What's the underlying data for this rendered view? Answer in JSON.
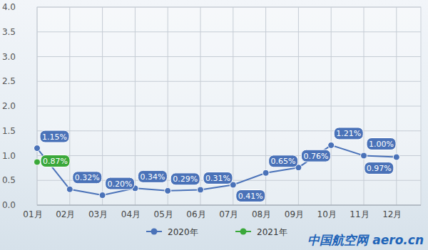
{
  "chart_data": {
    "type": "line",
    "categories": [
      "01月",
      "02月",
      "03月",
      "04月",
      "05月",
      "06月",
      "07月",
      "08月",
      "09月",
      "10月",
      "11月",
      "12月"
    ],
    "series": [
      {
        "name": "2020年",
        "color": "#4a72b8",
        "marker": "circle",
        "values": [
          1.15,
          0.32,
          0.2,
          0.34,
          0.29,
          0.31,
          0.41,
          0.65,
          0.76,
          1.21,
          1.0,
          0.97
        ],
        "value_labels": [
          "1.15%",
          "0.32%",
          "0.20%",
          "0.34%",
          "0.29%",
          "0.31%",
          "0.41%",
          "0.65%",
          "0.76%",
          "1.21%",
          "1.00%",
          "0.97%"
        ]
      },
      {
        "name": "2021年",
        "color": "#3aa83a",
        "marker": "circle",
        "values": [
          0.87,
          null,
          null,
          null,
          null,
          null,
          null,
          null,
          null,
          null,
          null,
          null
        ],
        "value_labels": [
          "0.87%",
          null,
          null,
          null,
          null,
          null,
          null,
          null,
          null,
          null,
          null,
          null
        ]
      }
    ],
    "ylim": [
      0,
      4
    ],
    "yticks": [
      {
        "value": 0,
        "label": "0.0"
      },
      0.5,
      {
        "value": 1,
        "label": "1.0"
      },
      1.5,
      {
        "value": 2,
        "label": "2.0"
      },
      2.5,
      {
        "value": 3,
        "label": "3.0"
      },
      3.5,
      {
        "value": 4,
        "label": "4.0"
      }
    ],
    "grid": true,
    "legend": "bottom",
    "data_labels": true,
    "watermark": "中国航空网 aero.cn"
  }
}
